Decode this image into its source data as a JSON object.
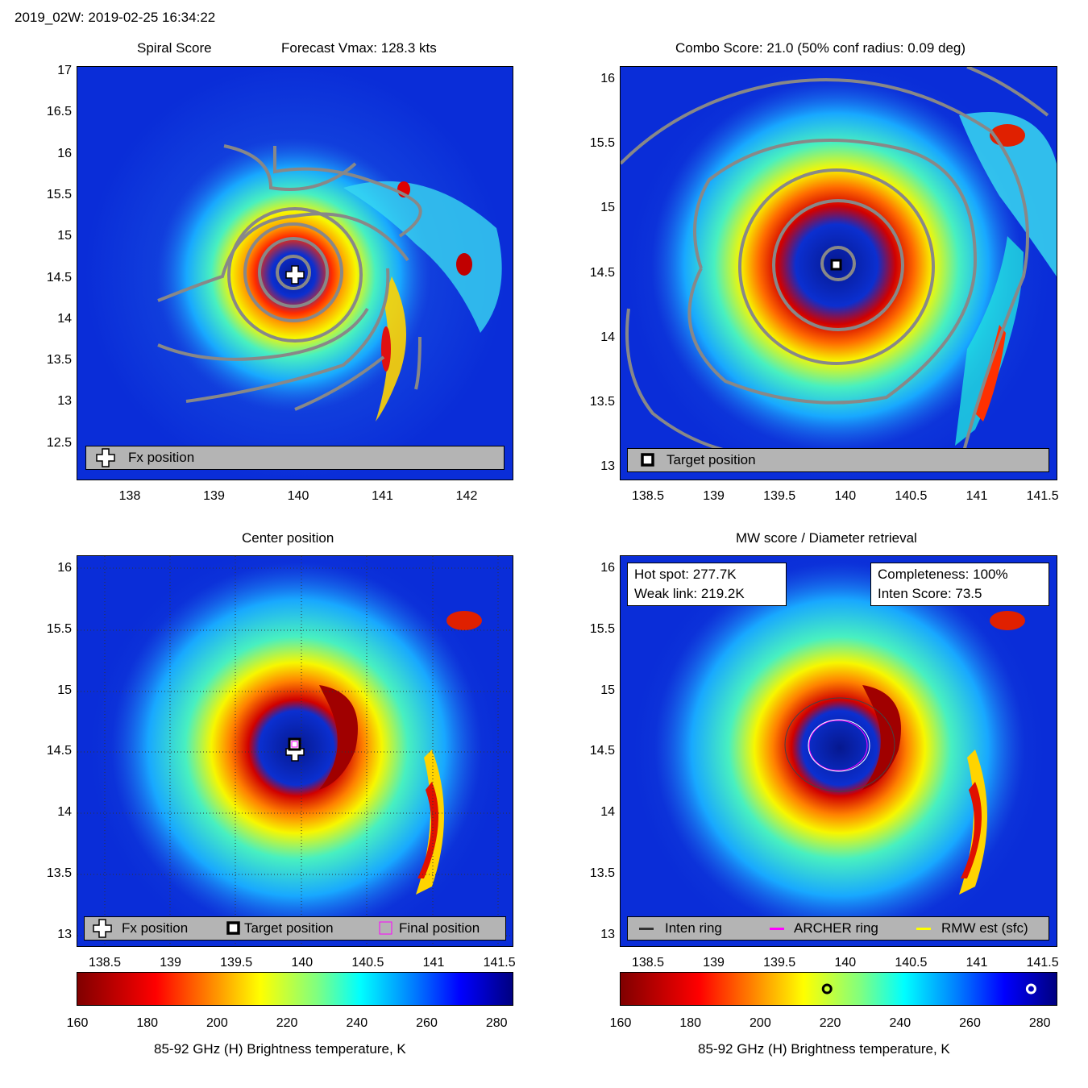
{
  "header": "2019_02W: 2019-02-25 16:34:22",
  "colors": {
    "grid_contour": "#888888",
    "archer": "#ff00ff",
    "rmw": "#ffff00",
    "inten": "#333333"
  },
  "panels": {
    "spiral": {
      "title_left": "Spiral Score",
      "title_right": "Forecast Vmax: 128.3 kts",
      "yticks": [
        "17",
        "16.5",
        "16",
        "15.5",
        "15",
        "14.5",
        "14",
        "13.5",
        "13",
        "12.5"
      ],
      "xticks": [
        "138",
        "139",
        "140",
        "141",
        "142"
      ],
      "legend": [
        "Fx position"
      ]
    },
    "combo": {
      "title": "Combo Score: 21.0  (50% conf radius: 0.09 deg)",
      "yticks": [
        "16",
        "15.5",
        "15",
        "14.5",
        "14",
        "13.5",
        "13"
      ],
      "xticks": [
        "138.5",
        "139",
        "139.5",
        "140",
        "140.5",
        "141",
        "141.5"
      ],
      "legend": [
        "Target position"
      ]
    },
    "center": {
      "title": "Center position",
      "yticks": [
        "16",
        "15.5",
        "15",
        "14.5",
        "14",
        "13.5",
        "13"
      ],
      "xticks": [
        "138.5",
        "139",
        "139.5",
        "140",
        "140.5",
        "141",
        "141.5"
      ],
      "legend": [
        "Fx position",
        "Target position",
        "Final position"
      ]
    },
    "mw": {
      "title": "MW score / Diameter retrieval",
      "yticks": [
        "16",
        "15.5",
        "15",
        "14.5",
        "14",
        "13.5",
        "13"
      ],
      "xticks": [
        "138.5",
        "139",
        "139.5",
        "140",
        "140.5",
        "141",
        "141.5"
      ],
      "info_left": [
        "Hot spot: 277.7K",
        "Weak link: 219.2K"
      ],
      "info_right": [
        "Completeness: 100%",
        "Inten Score: 73.5"
      ],
      "legend": [
        "Inten ring",
        "ARCHER ring",
        "RMW est (sfc)"
      ]
    }
  },
  "colorbar": {
    "ticks": [
      "160",
      "180",
      "200",
      "220",
      "240",
      "260",
      "280"
    ],
    "label": "85-92 GHz (H) Brightness temperature, K",
    "range": [
      160,
      285
    ],
    "hot_spot": 277.7,
    "weak_link": 219.2
  },
  "chart_data": [
    {
      "type": "heatmap",
      "title": "Spiral Score",
      "subtitle": "Forecast Vmax: 128.3 kts",
      "xlim": [
        137.35,
        142.5
      ],
      "ylim": [
        12.05,
        17.05
      ],
      "fx_position": {
        "lon": 139.96,
        "lat": 14.53
      }
    },
    {
      "type": "heatmap",
      "title": "Combo Score: 21.0  (50% conf radius: 0.09 deg)",
      "xlim": [
        138.3,
        141.55
      ],
      "ylim": [
        12.95,
        16.1
      ],
      "target_position": {
        "lon": 139.95,
        "lat": 14.57
      }
    },
    {
      "type": "heatmap",
      "title": "Center position",
      "xlim": [
        138.3,
        141.55
      ],
      "ylim": [
        12.95,
        16.1
      ],
      "fx_position": {
        "lon": 139.96,
        "lat": 14.53
      },
      "target_position": {
        "lon": 139.95,
        "lat": 14.57
      },
      "final_position": {
        "lon": 139.95,
        "lat": 14.57
      }
    },
    {
      "type": "heatmap",
      "title": "MW score / Diameter retrieval",
      "xlim": [
        138.3,
        141.55
      ],
      "ylim": [
        12.95,
        16.1
      ],
      "hot_spot_K": 277.7,
      "weak_link_K": 219.2,
      "completeness_pct": 100,
      "inten_score": 73.5
    }
  ]
}
